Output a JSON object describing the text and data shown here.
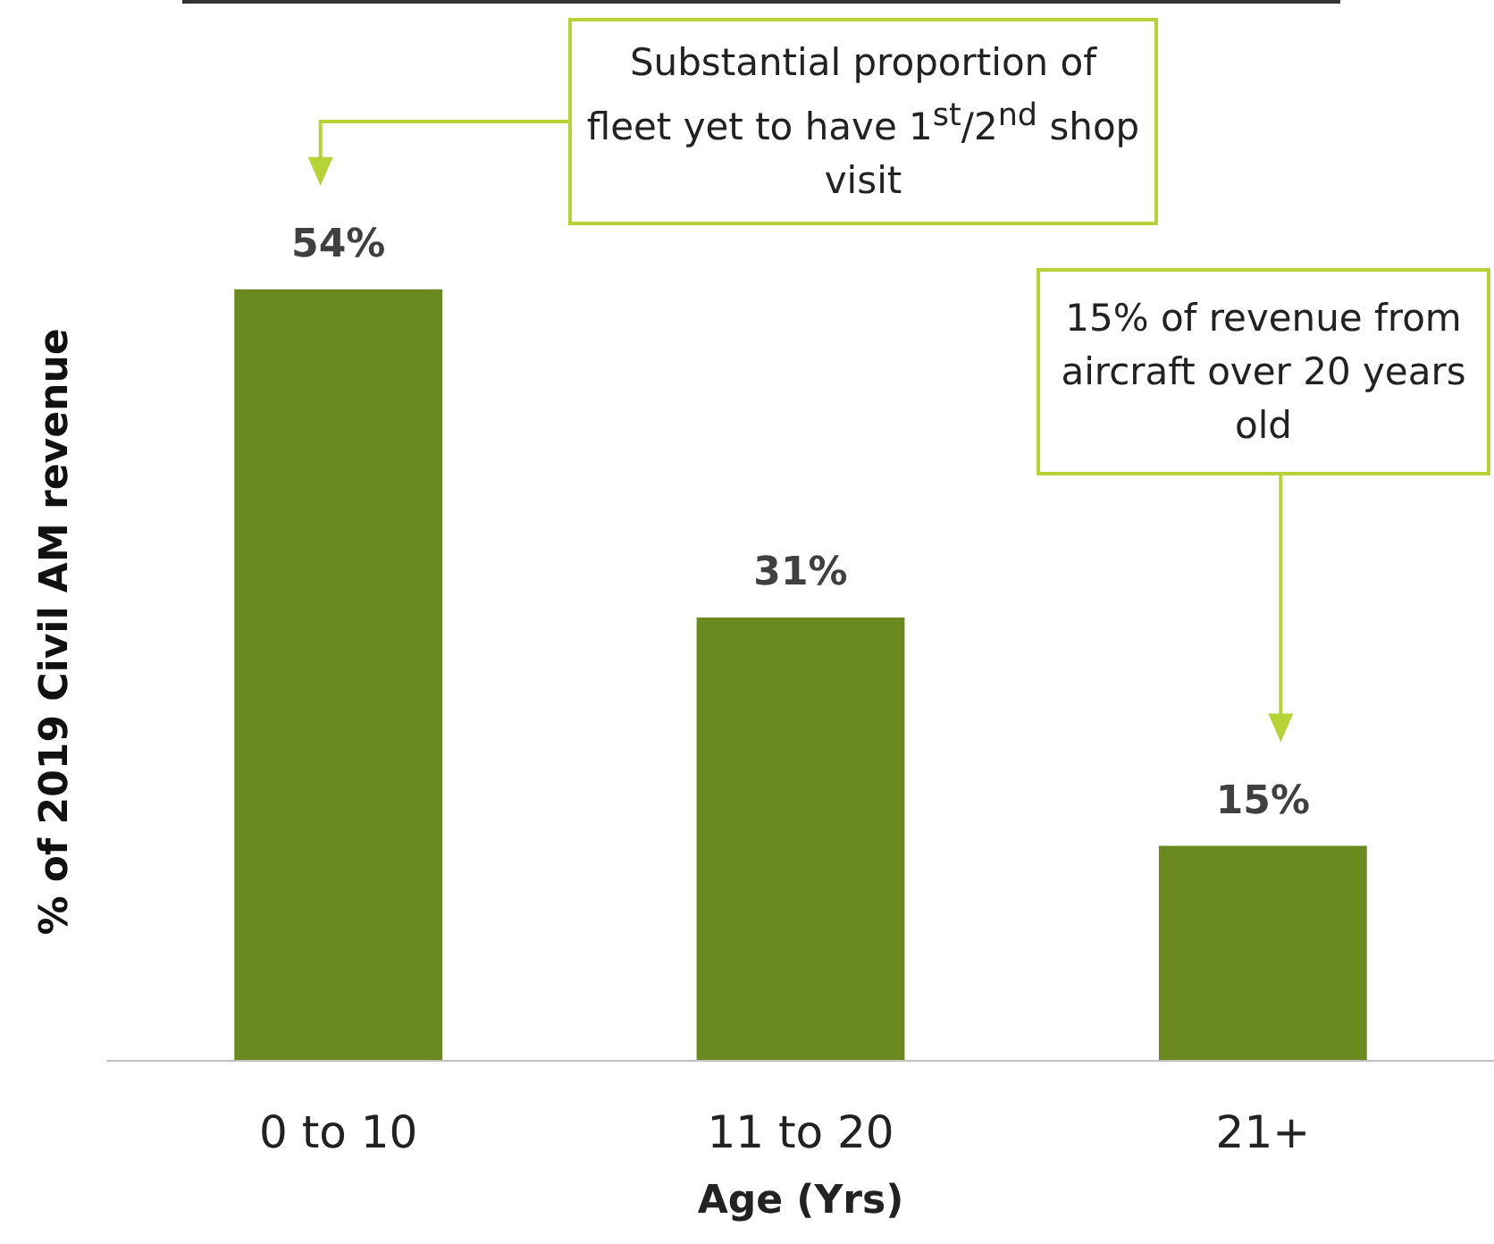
{
  "chart_data": {
    "type": "bar",
    "xlabel": "Age (Yrs)",
    "ylabel": "% of 2019 Civil AM revenue",
    "categories": [
      "0 to 10",
      "11 to 20",
      "21+"
    ],
    "values": [
      54,
      31,
      15
    ],
    "color": "#6a8a1f",
    "value_labels": [
      "54%",
      "31%",
      "15%"
    ],
    "annotations": [
      "Substantial proportion of fleet yet to have 1$^{st}$/2$^{nd}$ shop visit",
      "15% of revenue from aircraft over 20 years old"
    ],
    "grid": false
  }
}
